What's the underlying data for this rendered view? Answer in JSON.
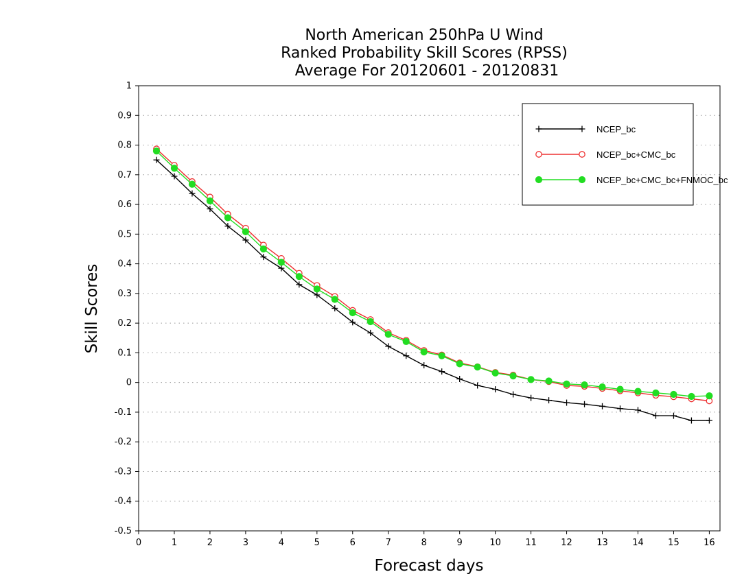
{
  "chart_data": {
    "type": "line",
    "title": [
      "North American 250hPa U Wind",
      "Ranked Probability Skill Scores (RPSS)",
      "Average For 20120601 - 20120831"
    ],
    "xlabel": "Forecast days",
    "ylabel": "Skill Scores",
    "xlim": [
      0,
      16.3
    ],
    "ylim": [
      -0.5,
      1
    ],
    "x_ticks": [
      0,
      1,
      2,
      3,
      4,
      5,
      6,
      7,
      8,
      9,
      10,
      11,
      12,
      13,
      14,
      15,
      16
    ],
    "y_ticks": [
      -0.5,
      -0.4,
      -0.3,
      -0.2,
      -0.1,
      0,
      0.1,
      0.2,
      0.3,
      0.4,
      0.5,
      0.6,
      0.7,
      0.8,
      0.9,
      1
    ],
    "y_tick_labels": [
      "-0.5",
      "-0.4",
      "-0.3",
      "-0.2",
      "-0.1",
      "0",
      "0.1",
      "0.2",
      "0.3",
      "0.4",
      "0.5",
      "0.6",
      "0.7",
      "0.8",
      "0.9",
      "1"
    ],
    "grid": "horizontal-dotted",
    "legend_position": "top-right",
    "x": [
      0.5,
      1,
      1.5,
      2,
      2.5,
      3,
      3.5,
      4,
      4.5,
      5,
      5.5,
      6,
      6.5,
      7,
      7.5,
      8,
      8.5,
      9,
      9.5,
      10,
      10.5,
      11,
      11.5,
      12,
      12.5,
      13,
      13.5,
      14,
      14.5,
      15,
      15.5,
      16
    ],
    "series": [
      {
        "name": "NCEP_bc",
        "color": "#000000",
        "marker": "plus",
        "values": [
          0.75,
          0.695,
          0.637,
          0.585,
          0.527,
          0.48,
          0.423,
          0.385,
          0.33,
          0.295,
          0.25,
          0.203,
          0.167,
          0.122,
          0.09,
          0.058,
          0.037,
          0.012,
          -0.01,
          -0.023,
          -0.04,
          -0.052,
          -0.06,
          -0.068,
          -0.073,
          -0.08,
          -0.088,
          -0.093,
          -0.112,
          -0.112,
          -0.128,
          -0.128
        ]
      },
      {
        "name": "NCEP_bc+CMC_bc",
        "color": "#ee3030",
        "marker": "open-circle",
        "values": [
          0.787,
          0.732,
          0.677,
          0.625,
          0.567,
          0.52,
          0.463,
          0.418,
          0.368,
          0.327,
          0.29,
          0.243,
          0.212,
          0.168,
          0.142,
          0.108,
          0.093,
          0.066,
          0.053,
          0.034,
          0.025,
          0.01,
          0.003,
          -0.01,
          -0.013,
          -0.02,
          -0.028,
          -0.035,
          -0.043,
          -0.048,
          -0.055,
          -0.062
        ]
      },
      {
        "name": "NCEP_bc+CMC_bc+FNMOC_bc",
        "color": "#22dd22",
        "marker": "filled-circle",
        "values": [
          0.78,
          0.722,
          0.668,
          0.612,
          0.555,
          0.508,
          0.45,
          0.405,
          0.357,
          0.315,
          0.28,
          0.235,
          0.205,
          0.162,
          0.138,
          0.103,
          0.09,
          0.063,
          0.052,
          0.032,
          0.022,
          0.01,
          0.005,
          -0.005,
          -0.008,
          -0.015,
          -0.023,
          -0.03,
          -0.035,
          -0.04,
          -0.047,
          -0.045
        ]
      }
    ]
  }
}
